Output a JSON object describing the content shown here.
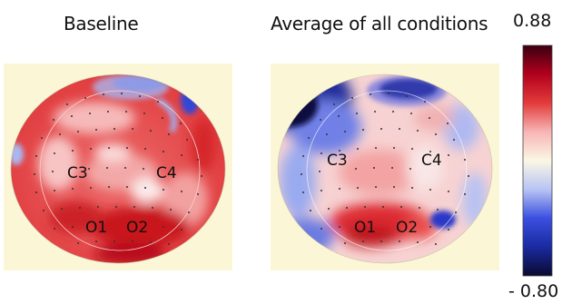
{
  "panels": [
    {
      "title": "Baseline",
      "electrodes": [
        "C3",
        "C4",
        "O1",
        "O2"
      ]
    },
    {
      "title": "Average of all conditions",
      "electrodes": [
        "C3",
        "C4",
        "O1",
        "O2"
      ]
    }
  ],
  "colorbar": {
    "max_label": "0.88",
    "min_label": "- 0.80",
    "stops": [
      "#3a0010",
      "#b2001d",
      "#e33b3b",
      "#f7b5b5",
      "#fbf7e4",
      "#b8c4f4",
      "#3b4fe0",
      "#1a2aa0",
      "#0a0a30"
    ]
  },
  "colors": {
    "panel_bg": "#fbf7d6",
    "strong_red": "#d8202a",
    "mid_red": "#ea5a5a",
    "light_red": "#f5b0b0",
    "neutral": "#fbf2ec",
    "blue": "#2b3bd6",
    "dark_blue": "#101060"
  }
}
